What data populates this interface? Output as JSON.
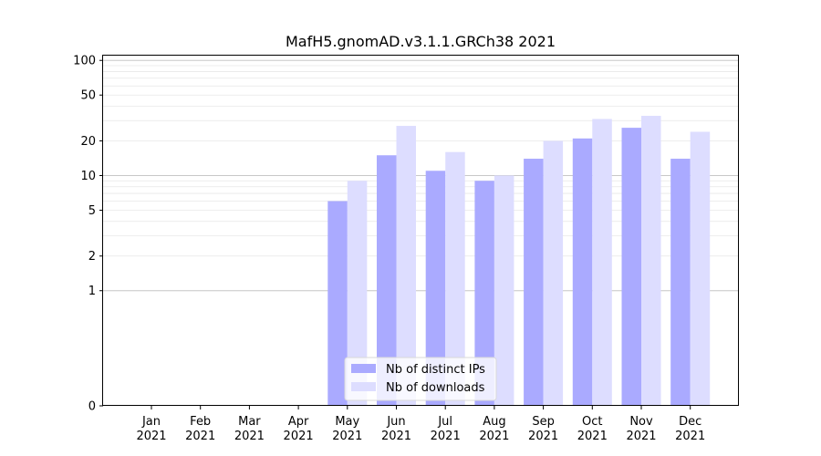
{
  "chart_data": {
    "type": "bar",
    "title": "MafH5.gnomAD.v3.1.1.GRCh38 2021",
    "scale": "symlog",
    "categories": [
      {
        "month": "Jan",
        "year": "2021"
      },
      {
        "month": "Feb",
        "year": "2021"
      },
      {
        "month": "Mar",
        "year": "2021"
      },
      {
        "month": "Apr",
        "year": "2021"
      },
      {
        "month": "May",
        "year": "2021"
      },
      {
        "month": "Jun",
        "year": "2021"
      },
      {
        "month": "Jul",
        "year": "2021"
      },
      {
        "month": "Aug",
        "year": "2021"
      },
      {
        "month": "Sep",
        "year": "2021"
      },
      {
        "month": "Oct",
        "year": "2021"
      },
      {
        "month": "Nov",
        "year": "2021"
      },
      {
        "month": "Dec",
        "year": "2021"
      }
    ],
    "series": [
      {
        "name": "Nb of distinct IPs",
        "color": "#aaaaff",
        "values": [
          0,
          0,
          0,
          0,
          6,
          15,
          11,
          9,
          14,
          21,
          26,
          14
        ]
      },
      {
        "name": "Nb of downloads",
        "color": "#ddddff",
        "values": [
          0,
          0,
          0,
          0,
          9,
          27,
          16,
          10,
          20,
          31,
          33,
          24
        ]
      }
    ],
    "yticks": [
      {
        "value": 0,
        "label": "0"
      },
      {
        "value": 1,
        "label": "1"
      },
      {
        "value": 2,
        "label": "2"
      },
      {
        "value": 5,
        "label": "5"
      },
      {
        "value": 10,
        "label": "10"
      },
      {
        "value": 20,
        "label": "20"
      },
      {
        "value": 50,
        "label": "50"
      },
      {
        "value": 100,
        "label": "100"
      }
    ],
    "ylim": [
      0,
      110
    ],
    "grid": true,
    "legend_position": "bottom-center"
  }
}
